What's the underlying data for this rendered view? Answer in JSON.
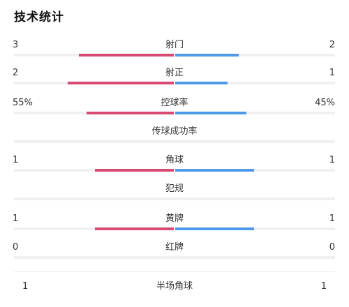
{
  "title": "技术统计",
  "colors": {
    "left": "#d94a73",
    "right": "#4f9ae8",
    "track": "#f0f0f0"
  },
  "stats": [
    {
      "label": "射门",
      "left": "3",
      "right": "2",
      "left_share": 0.6,
      "right_share": 0.4
    },
    {
      "label": "射正",
      "left": "2",
      "right": "1",
      "left_share": 0.67,
      "right_share": 0.33
    },
    {
      "label": "控球率",
      "left": "55%",
      "right": "45%",
      "left_share": 0.55,
      "right_share": 0.45
    },
    {
      "label": "传球成功率",
      "left": "",
      "right": "",
      "left_share": 0,
      "right_share": 0
    },
    {
      "label": "角球",
      "left": "1",
      "right": "1",
      "left_share": 0.5,
      "right_share": 0.5
    },
    {
      "label": "犯规",
      "left": "",
      "right": "",
      "left_share": 0,
      "right_share": 0
    },
    {
      "label": "黄牌",
      "left": "1",
      "right": "1",
      "left_share": 0.5,
      "right_share": 0.5
    },
    {
      "label": "红牌",
      "left": "0",
      "right": "0",
      "left_share": 0,
      "right_share": 0
    }
  ],
  "half": {
    "label": "半场角球",
    "left": "1",
    "right": "1"
  }
}
